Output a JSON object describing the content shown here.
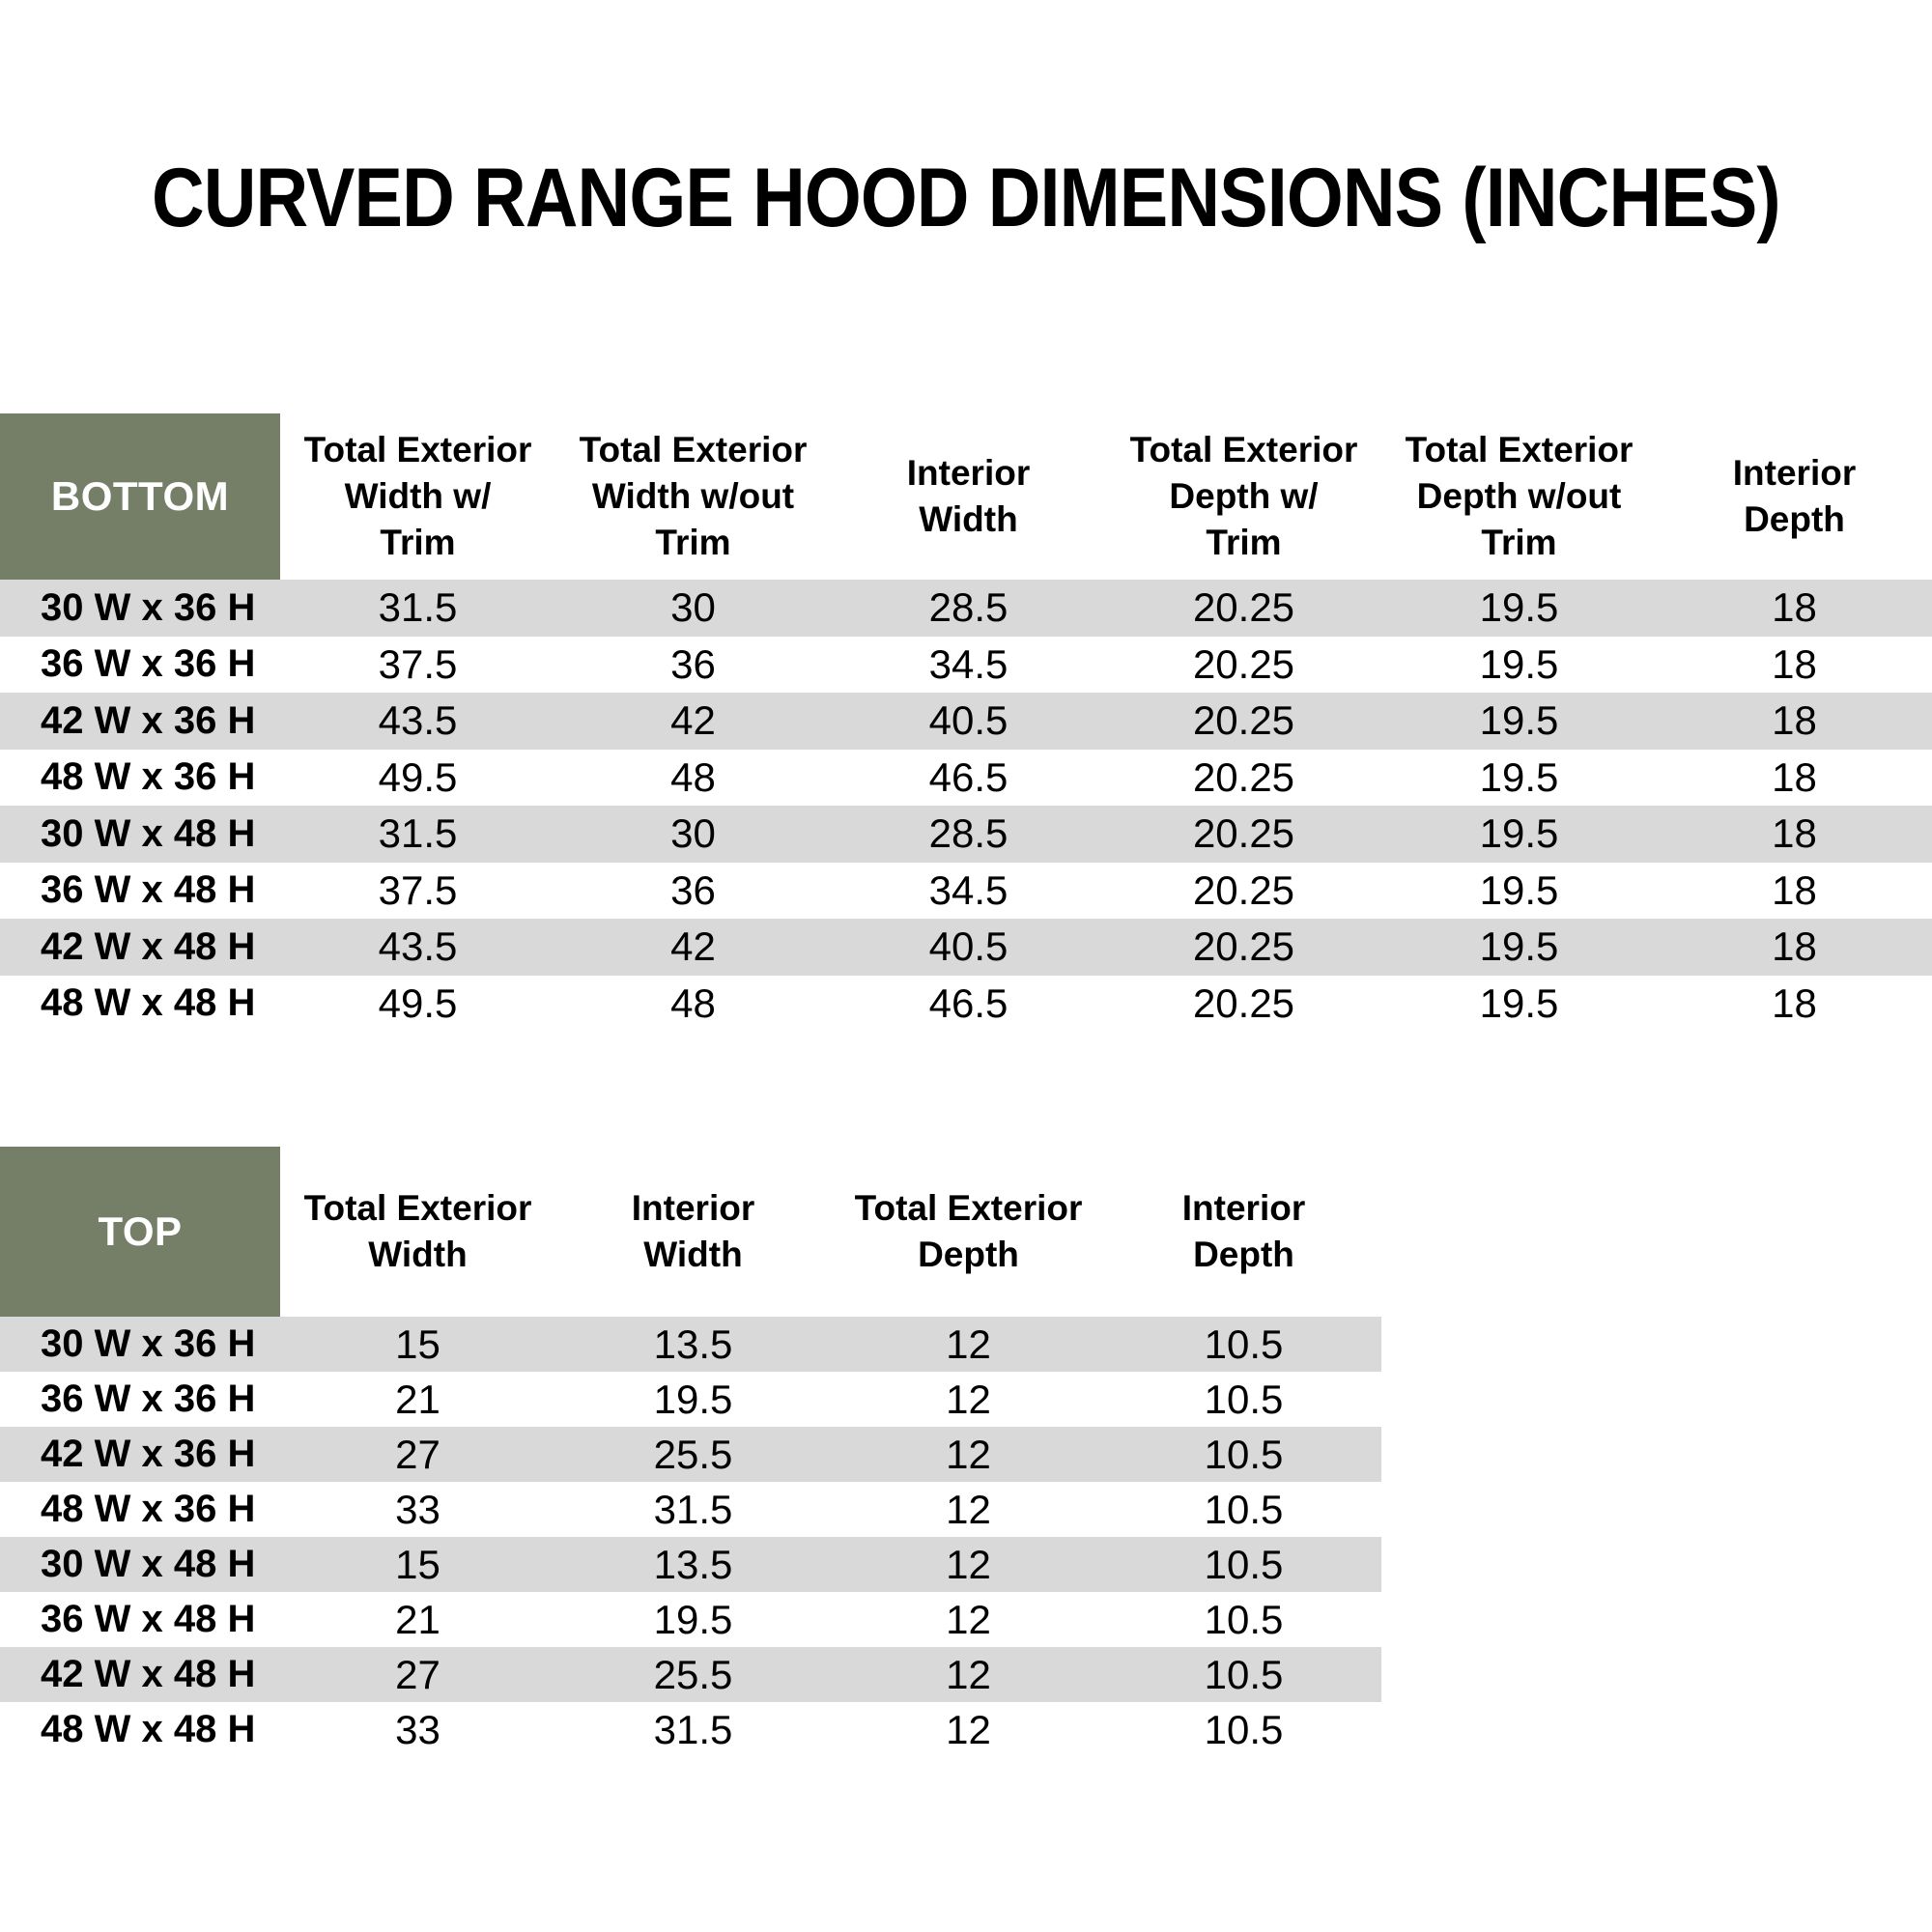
{
  "title": "CURVED RANGE HOOD DIMENSIONS (INCHES)",
  "colors": {
    "header_green": "#757F67",
    "stripe_gray": "#D9D9D9",
    "row_white": "#FFFFFF",
    "header_label_text": "#FFFFFF",
    "body_text": "#000000"
  },
  "bottom_table": {
    "corner_label": "BOTTOM",
    "columns": [
      "Total Exterior\nWidth w/\nTrim",
      "Total Exterior\nWidth w/out\nTrim",
      "Interior\nWidth",
      "Total Exterior\nDepth w/\nTrim",
      "Total Exterior\nDepth w/out\nTrim",
      "Interior\nDepth"
    ],
    "rows": [
      {
        "size": "30 W x 36 H",
        "values": [
          "31.5",
          "30",
          "28.5",
          "20.25",
          "19.5",
          "18"
        ]
      },
      {
        "size": "36 W x 36 H",
        "values": [
          "37.5",
          "36",
          "34.5",
          "20.25",
          "19.5",
          "18"
        ]
      },
      {
        "size": "42 W x 36 H",
        "values": [
          "43.5",
          "42",
          "40.5",
          "20.25",
          "19.5",
          "18"
        ]
      },
      {
        "size": "48 W x 36 H",
        "values": [
          "49.5",
          "48",
          "46.5",
          "20.25",
          "19.5",
          "18"
        ]
      },
      {
        "size": "30 W x 48 H",
        "values": [
          "31.5",
          "30",
          "28.5",
          "20.25",
          "19.5",
          "18"
        ]
      },
      {
        "size": "36 W x 48 H",
        "values": [
          "37.5",
          "36",
          "34.5",
          "20.25",
          "19.5",
          "18"
        ]
      },
      {
        "size": "42 W x 48 H",
        "values": [
          "43.5",
          "42",
          "40.5",
          "20.25",
          "19.5",
          "18"
        ]
      },
      {
        "size": "48 W x 48 H",
        "values": [
          "49.5",
          "48",
          "46.5",
          "20.25",
          "19.5",
          "18"
        ]
      }
    ]
  },
  "top_table": {
    "corner_label": "TOP",
    "columns": [
      "Total Exterior\nWidth",
      "Interior\nWidth",
      "Total Exterior\nDepth",
      "Interior\nDepth"
    ],
    "rows": [
      {
        "size": "30 W x 36 H",
        "values": [
          "15",
          "13.5",
          "12",
          "10.5"
        ]
      },
      {
        "size": "36 W x 36 H",
        "values": [
          "21",
          "19.5",
          "12",
          "10.5"
        ]
      },
      {
        "size": "42 W x 36 H",
        "values": [
          "27",
          "25.5",
          "12",
          "10.5"
        ]
      },
      {
        "size": "48 W x 36 H",
        "values": [
          "33",
          "31.5",
          "12",
          "10.5"
        ]
      },
      {
        "size": "30 W x 48 H",
        "values": [
          "15",
          "13.5",
          "12",
          "10.5"
        ]
      },
      {
        "size": "36 W x 48 H",
        "values": [
          "21",
          "19.5",
          "12",
          "10.5"
        ]
      },
      {
        "size": "42 W x 48 H",
        "values": [
          "27",
          "25.5",
          "12",
          "10.5"
        ]
      },
      {
        "size": "48 W x 48 H",
        "values": [
          "33",
          "31.5",
          "12",
          "10.5"
        ]
      }
    ]
  }
}
